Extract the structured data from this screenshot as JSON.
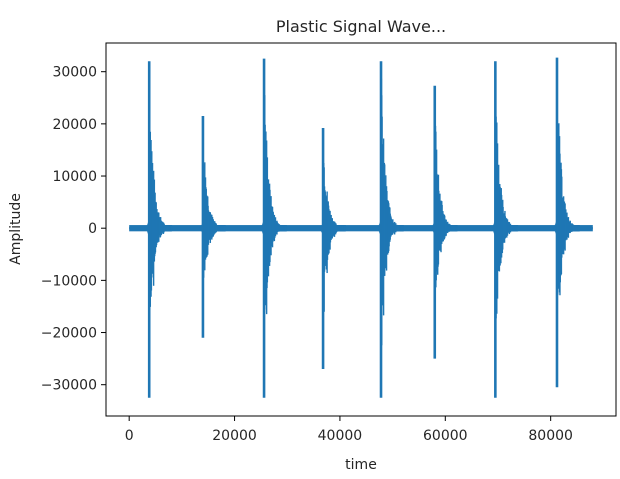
{
  "chart_data": {
    "type": "line",
    "title": "Plastic Signal Wave...",
    "xlabel": "time",
    "ylabel": "Amplitude",
    "xlim": [
      -4400,
      92400
    ],
    "ylim": [
      -36000,
      35500
    ],
    "grid": false,
    "legend": "none",
    "x_ticks": [
      0,
      20000,
      40000,
      60000,
      80000
    ],
    "x_tick_labels": [
      "0",
      "20000",
      "40000",
      "60000",
      "80000"
    ],
    "y_ticks": [
      -30000,
      -20000,
      -10000,
      0,
      10000,
      20000,
      30000
    ],
    "y_tick_labels": [
      "−30000",
      "−20000",
      "−10000",
      "0",
      "10000",
      "20000",
      "30000"
    ],
    "colors": {
      "series": "#1f77b4",
      "axes": "#000000",
      "text": "#262626"
    },
    "series": [
      {
        "x_range": [
          0,
          88000
        ],
        "baseline_noise": 600,
        "events": [
          {
            "x": 3800,
            "max": 32000,
            "min": -32500
          },
          {
            "x": 14000,
            "max": 21500,
            "min": -21000
          },
          {
            "x": 25600,
            "max": 32500,
            "min": -32500
          },
          {
            "x": 36800,
            "max": 19200,
            "min": -27000
          },
          {
            "x": 47800,
            "max": 32000,
            "min": -32500
          },
          {
            "x": 58000,
            "max": 27300,
            "min": -25000
          },
          {
            "x": 69500,
            "max": 32000,
            "min": -32500
          },
          {
            "x": 81200,
            "max": 32700,
            "min": -30500
          }
        ]
      }
    ]
  }
}
